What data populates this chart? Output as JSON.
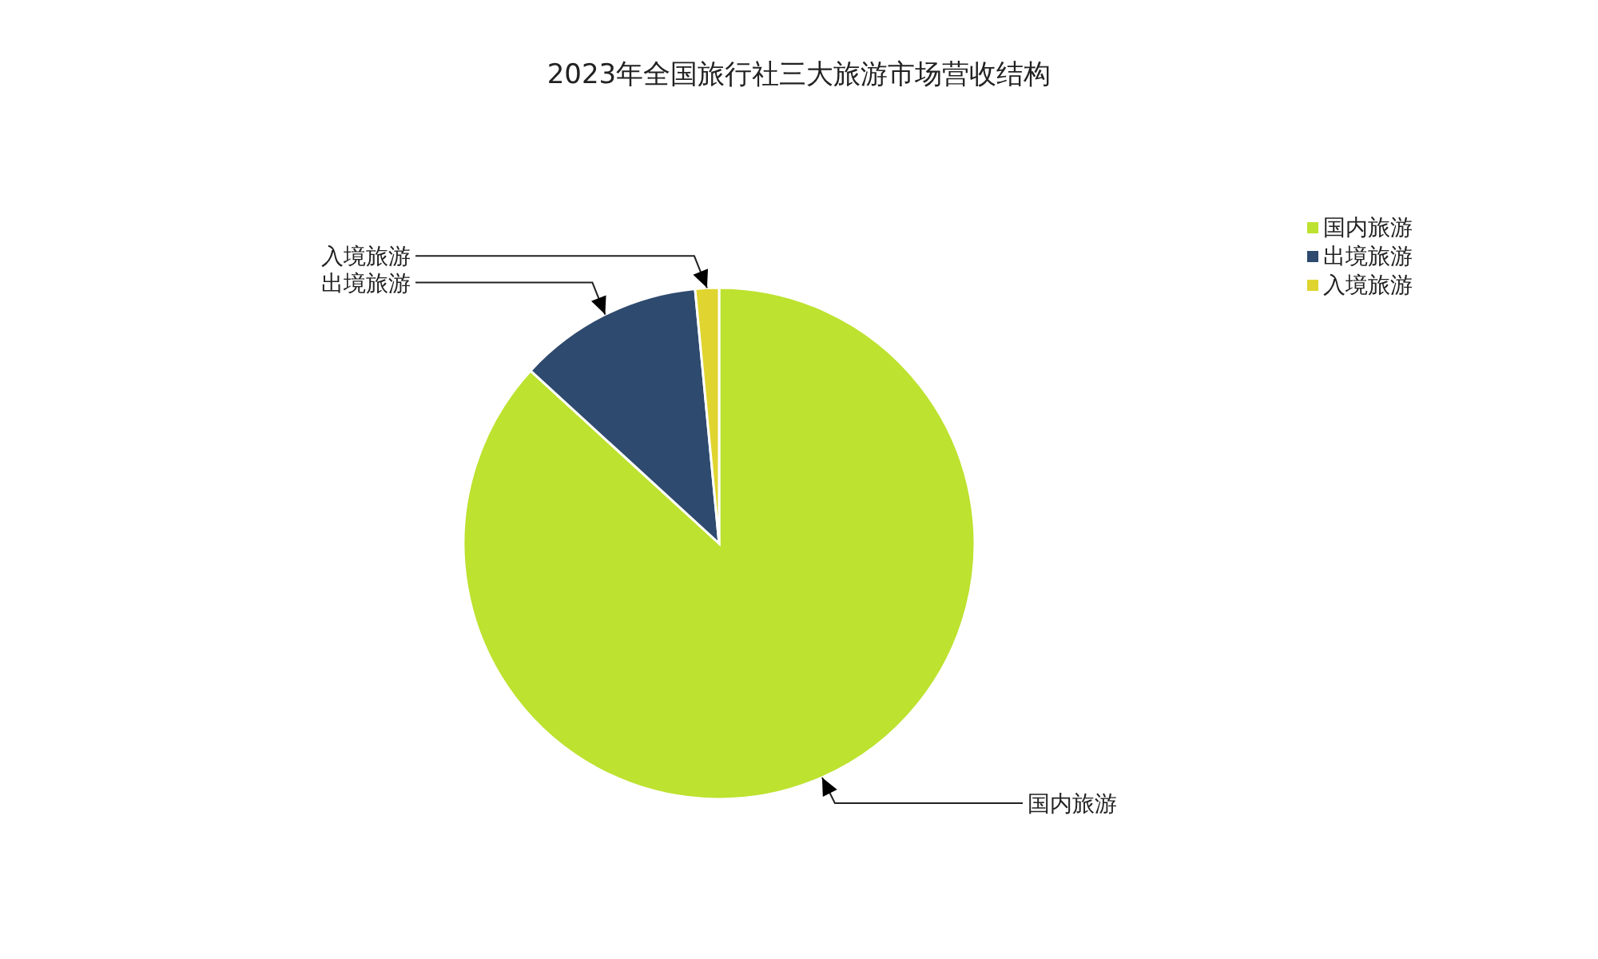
{
  "chart_data": {
    "type": "pie",
    "title": "2023年全国旅行社三大旅游市场营收结构",
    "categories": [
      "国内旅游",
      "出境旅游",
      "入境旅游"
    ],
    "values": [
      86.8,
      11.7,
      1.5
    ],
    "colors": [
      "#bde22f",
      "#2e4a6e",
      "#e0d530"
    ],
    "legend": "top right"
  }
}
